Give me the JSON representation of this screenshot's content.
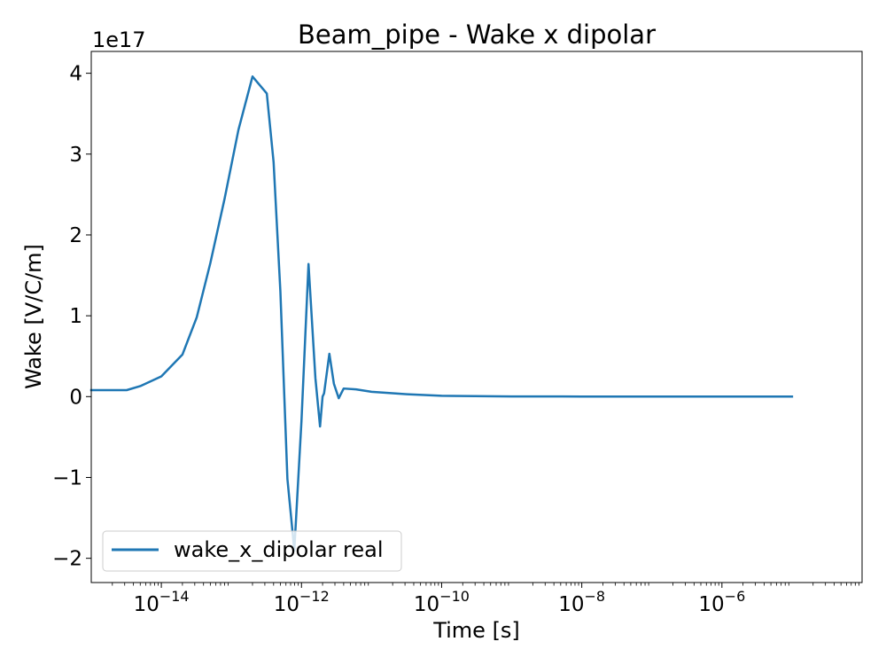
{
  "chart_data": {
    "type": "line",
    "title": "Beam_pipe - Wake x dipolar",
    "xlabel": "Time [s]",
    "ylabel": "Wake [V/C/m]",
    "xscale": "log",
    "xlim": [
      1e-15,
      0.0001
    ],
    "ylim": [
      -2.3e+17,
      4.27e+17
    ],
    "y_offset_label": "1e17",
    "x_ticks": [
      {
        "value": 1e-14,
        "base": "10",
        "exp": "−14"
      },
      {
        "value": 1e-12,
        "base": "10",
        "exp": "−12"
      },
      {
        "value": 1e-10,
        "base": "10",
        "exp": "−10"
      },
      {
        "value": 1e-08,
        "base": "10",
        "exp": "−8"
      },
      {
        "value": 1e-06,
        "base": "10",
        "exp": "−6"
      }
    ],
    "y_ticks": [
      {
        "value": -2e+17,
        "label": "−2"
      },
      {
        "value": -1e+17,
        "label": "−1"
      },
      {
        "value": 0,
        "label": "0"
      },
      {
        "value": 1e+17,
        "label": "1"
      },
      {
        "value": 2e+17,
        "label": "2"
      },
      {
        "value": 3e+17,
        "label": "3"
      },
      {
        "value": 4e+17,
        "label": "4"
      }
    ],
    "grid": false,
    "legend": {
      "position": "lower-left"
    },
    "series": [
      {
        "name": "wake_x_dipolar real",
        "color": "#1f77b4",
        "x": [
          1e-15,
          3.2e-15,
          5e-15,
          1e-14,
          2e-14,
          3.2e-14,
          5e-14,
          8e-14,
          1.26e-13,
          2e-13,
          3.2e-13,
          4e-13,
          5e-13,
          6.3e-13,
          7.9e-13,
          1e-12,
          1.26e-12,
          1.58e-12,
          1.84e-12,
          2e-12,
          2.1e-12,
          2.5e-12,
          2.9e-12,
          3.4e-12,
          4e-12,
          6e-12,
          1e-11,
          3.2e-11,
          1e-10,
          1e-09,
          1e-08,
          1e-07,
          1e-06,
          1e-05
        ],
        "y": [
          8000000000000000.0,
          8000000000000000.0,
          1.3e+16,
          2.5e+16,
          5.2e+16,
          9.8e+16,
          1.65e+17,
          2.45e+17,
          3.3e+17,
          3.96e+17,
          3.75e+17,
          2.9e+17,
          1.3e+17,
          -1.02e+17,
          -1.9e+17,
          -3e+16,
          1.64e+17,
          2.3e+16,
          -3.7e+16,
          0,
          4000000000000000.0,
          5.3e+16,
          1.6e+16,
          -2000000000000000.0,
          1e+16,
          9000000000000000.0,
          6000000000000000.0,
          3000000000000000.0,
          1000000000000000.0,
          200000000000000.0,
          100000000000000.0,
          0,
          0,
          0
        ]
      }
    ]
  }
}
